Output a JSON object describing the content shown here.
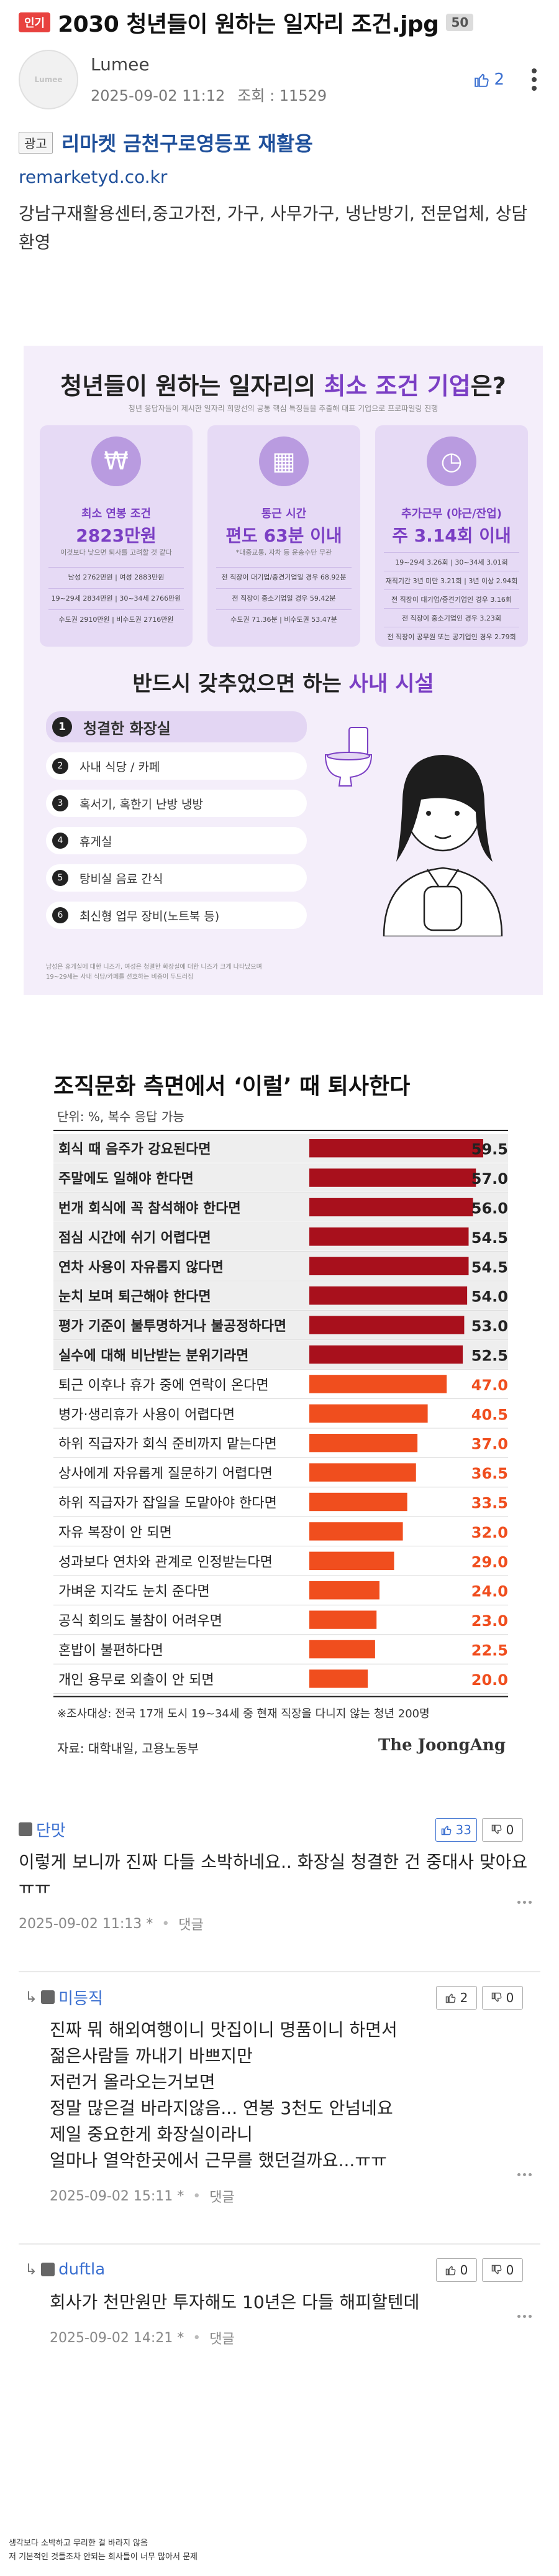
{
  "post": {
    "badge": "인기",
    "title": "2030 청년들이 원하는 일자리 조건.jpg",
    "comment_count": "50",
    "author": "Lumee",
    "avatar_text": "Lumee",
    "datetime": "2025-09-02 11:12",
    "views": "조회 : 11529",
    "likes": "2"
  },
  "ad": {
    "tag": "광고",
    "title": "리마켓 금천구로영등포 재활용",
    "url": "remarketyd.co.kr",
    "desc": "강남구재활용센터,중고가전, 가구, 사무가구, 냉난방기, 전문업체, 상담환영"
  },
  "infographic1": {
    "title_a": "청년들이 원하는 일자리의 ",
    "title_hl": "최소 조건 기업",
    "title_b": "은?",
    "subtitle": "청년 응답자들이 제시한 일자리 희망선의 공통 핵심 특징들을 추출해 대표 기업으로 프로파일링 진행",
    "cards": [
      {
        "icon": "money-bag-icon",
        "label": "최소 연봉 조건",
        "value": "2823만원",
        "note": "이것보다 낮으면 퇴사를 고려할 것 같다",
        "lines": [
          "남성 2762만원 | 여성 2883만원",
          "19~29세 2834만원 | 30~34세 2766만원",
          "수도권 2910만원 | 비수도권 2716만원"
        ]
      },
      {
        "icon": "building-icon",
        "label": "통근 시간",
        "value": "편도 63분 이내",
        "note": "*대중교통, 자차 등 운송수단 무관",
        "lines": [
          "전 직장이 대기업/중견기업일 경우 68.92분",
          "전 직장이 중소기업일 경우 59.42분",
          "수도권 71.36분 | 비수도권 53.47분"
        ]
      },
      {
        "icon": "clock-icon",
        "label": "추가근무 (야근/잔업)",
        "value": "주 3.14회 이내",
        "note": "",
        "lines": [
          "19~29세 3.26회 | 30~34세 3.01회",
          "재직기간 3년 미만 3.21회 | 3년 이상 2.94회",
          "전 직장이 대기업/중견기업인 경우 3.16회",
          "전 직장이 중소기업인 경우 3.23회",
          "전 직장이 공무원 또는 공기업인 경우 2.79회"
        ]
      }
    ],
    "section_a": "반드시 갖추었으면 하는 ",
    "section_hl": "사내 시설",
    "facilities": [
      {
        "num": "1",
        "label": "청결한 화장실"
      },
      {
        "num": "2",
        "label": "사내 식당 / 카페"
      },
      {
        "num": "3",
        "label": "혹서기, 혹한기 난방 냉방"
      },
      {
        "num": "4",
        "label": "휴게실"
      },
      {
        "num": "5",
        "label": "탕비실 음료 간식"
      },
      {
        "num": "6",
        "label": "최신형 업무 장비(노트북 등)"
      }
    ],
    "footnote_1": "남성은 휴게실에 대한 니즈가, 여성은 청결한 화장실에 대한 니즈가 크게 나타났으며",
    "footnote_2": "19~29세는 사내 식당/카페를 선호하는 비중이 두드러짐"
  },
  "chart_data": {
    "type": "bar",
    "title": "조직문화 측면에서 ‘이럴’ 때 퇴사한다",
    "unit_label": "단위: %, 복수 응답 가능",
    "categories": [
      "회식 때 음주가 강요된다면",
      "주말에도 일해야 한다면",
      "번개 회식에 꼭 참석해야 한다면",
      "점심 시간에 쉬기 어렵다면",
      "연차 사용이 자유롭지 않다면",
      "눈치 보며 퇴근해야 한다면",
      "평가 기준이 불투명하거나 불공정하다면",
      "실수에 대해 비난받는 분위기라면",
      "퇴근 이후나 휴가 중에 연락이 온다면",
      "병가·생리휴가 사용이 어렵다면",
      "하위 직급자가 회식 준비까지 맡는다면",
      "상사에게 자유롭게 질문하기 어렵다면",
      "하위 직급자가 잡일을 도맡아야 한다면",
      "자유 복장이 안 되면",
      "성과보다 연차와 관계로 인정받는다면",
      "가벼운 지각도 눈치 준다면",
      "공식 회의도 불참이 어려우면",
      "혼밥이 불편하다면",
      "개인 용무로 외출이 안 되면"
    ],
    "values": [
      59.5,
      57.0,
      56.0,
      54.5,
      54.5,
      54.0,
      53.0,
      52.5,
      47.0,
      40.5,
      37.0,
      36.5,
      33.5,
      32.0,
      29.0,
      24.0,
      23.0,
      22.5,
      20.0
    ],
    "value_labels": [
      "59.5",
      "57.0",
      "56.0",
      "54.5",
      "54.5",
      "54.0",
      "53.0",
      "52.5",
      "47.0",
      "40.5",
      "37.0",
      "36.5",
      "33.5",
      "32.0",
      "29.0",
      "24.0",
      "23.0",
      "22.5",
      "20.0"
    ],
    "colors": {
      "top": "#a8101c",
      "rest": "#f04e1e"
    },
    "highlight_count": 8,
    "note": "※조사대상: 전국 17개 도시 19~34세 중 현재 직장을 다니지 않는 청년 200명",
    "source": "자료: 대학내일, 고용노동부",
    "logo": "The JoongAng"
  },
  "comments": [
    {
      "name": "단맛",
      "up": "33",
      "down": "0",
      "text": "이렇게 보니까 진짜 다들 소박하네요.. 화장실 청결한 건 중대사 맞아요 ㅠㅠ",
      "datetime": "2025-09-02 11:13",
      "star": "*",
      "reply": "댓글"
    },
    {
      "name": "미등직",
      "up": "2",
      "down": "0",
      "text": "진짜 뭐 해외여행이니 맛집이니 명품이니 하면서\n젊은사람들 까내기 바쁘지만\n저런거 올라오는거보면\n정말 많은걸 바라지않음... 연봉 3천도 안넘네요\n제일 중요한게 화장실이라니\n얼마나 열악한곳에서 근무를 했던걸까요...ㅠㅠ",
      "datetime": "2025-09-02 15:11",
      "star": "*",
      "reply": "댓글"
    },
    {
      "name": "duftla",
      "up": "0",
      "down": "0",
      "text": "회사가 천만원만 투자해도 10년은 다들 해피할텐데",
      "datetime": "2025-09-02 14:21",
      "star": "*",
      "reply": "댓글"
    }
  ],
  "bottom_caption": {
    "line1": "생각보다 소박하고 무리한 걸 바라지 않음",
    "line2": "저 기본적인 것들조차 안되는 회사들이 너무 많아서 문제"
  }
}
